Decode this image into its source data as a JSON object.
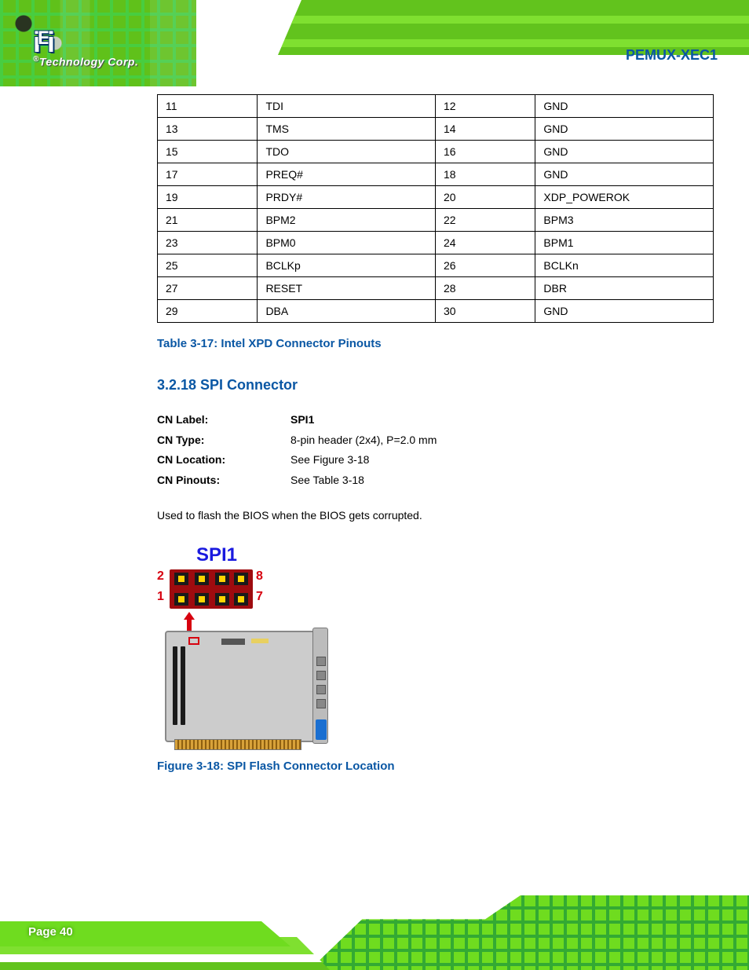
{
  "brand": {
    "logo_text": "iEi",
    "tagline_prefix": "®",
    "tagline": "Technology Corp."
  },
  "product_name": "PEMUX-XEC1",
  "pinout_table": {
    "rows": [
      {
        "pin_a": "11",
        "desc_a": "TDI",
        "pin_b": "12",
        "desc_b": "GND"
      },
      {
        "pin_a": "13",
        "desc_a": "TMS",
        "pin_b": "14",
        "desc_b": "GND"
      },
      {
        "pin_a": "15",
        "desc_a": "TDO",
        "pin_b": "16",
        "desc_b": "GND"
      },
      {
        "pin_a": "17",
        "desc_a": "PREQ#",
        "pin_b": "18",
        "desc_b": "GND"
      },
      {
        "pin_a": "19",
        "desc_a": "PRDY#",
        "pin_b": "20",
        "desc_b": "XDP_POWEROK"
      },
      {
        "pin_a": "21",
        "desc_a": "BPM2",
        "pin_b": "22",
        "desc_b": "BPM3"
      },
      {
        "pin_a": "23",
        "desc_a": "BPM0",
        "pin_b": "24",
        "desc_b": "BPM1"
      },
      {
        "pin_a": "25",
        "desc_a": "BCLKp",
        "pin_b": "26",
        "desc_b": "BCLKn"
      },
      {
        "pin_a": "27",
        "desc_a": "RESET",
        "pin_b": "28",
        "desc_b": "DBR"
      },
      {
        "pin_a": "29",
        "desc_a": "DBA",
        "pin_b": "30",
        "desc_b": "GND"
      }
    ]
  },
  "table_caption": "Table 3-17: Intel XPD Connector Pinouts",
  "section_heading": "3.2.18 SPI Connector",
  "cn_info": {
    "label_cn": "CN Label:",
    "value_cn": "SPI1",
    "label_type": "CN Type:",
    "value_type": "8-pin header (2x4), P=2.0 mm",
    "label_loc": "CN Location:",
    "value_loc": "See Figure 3-18",
    "label_pin": "CN Pinouts:",
    "value_pin": "See Table 3-18"
  },
  "body_text": "Used to flash the BIOS when the BIOS gets corrupted.",
  "figure": {
    "spi_label": "SPI1",
    "pins": {
      "tl": "2",
      "tr": "8",
      "bl": "1",
      "br": "7"
    }
  },
  "figure_caption": "Figure 3-18: SPI Flash Connector Location",
  "page_number": "Page 40",
  "colors": {
    "accent_blue": "#0a57a4",
    "spi_blue": "#1a1adf",
    "red": "#d7000f",
    "green": "#6fdc1f"
  }
}
